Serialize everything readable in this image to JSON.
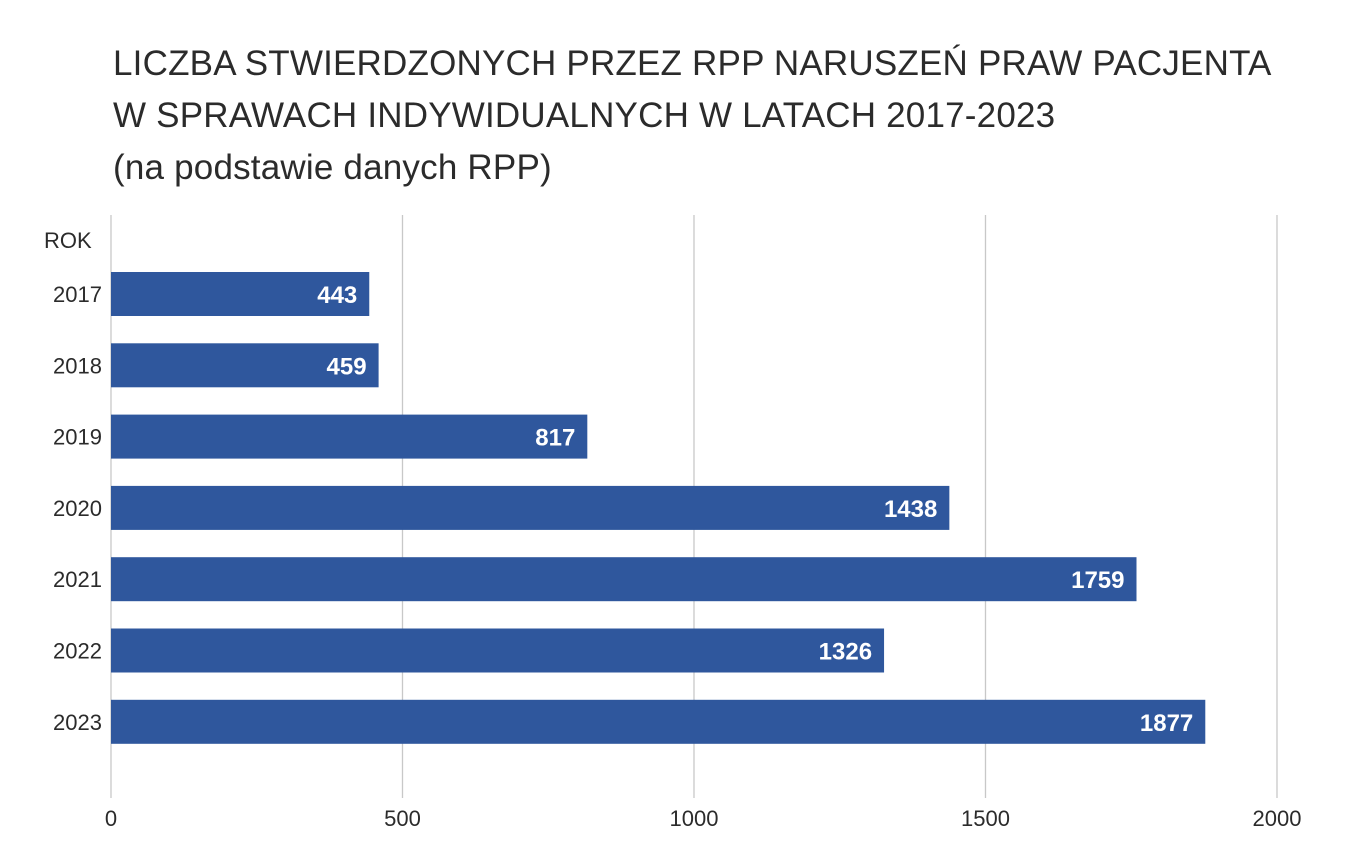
{
  "chart_data": {
    "type": "bar",
    "orientation": "horizontal",
    "title_lines": [
      "LICZBA STWIERDZONYCH PRZEZ RPP NARUSZEŃ PRAW PACJENTA",
      "W SPRAWACH INDYWIDUALNYCH W LATACH 2017-2023",
      "(na podstawie danych RPP)"
    ],
    "category_axis_label": "ROK",
    "categories": [
      "2017",
      "2018",
      "2019",
      "2020",
      "2021",
      "2022",
      "2023"
    ],
    "values": [
      443,
      459,
      817,
      1438,
      1759,
      1326,
      1877
    ],
    "value_labels": [
      "443",
      "459",
      "817",
      "1438",
      "1759",
      "1326",
      "1877"
    ],
    "xlim": [
      0,
      2000
    ],
    "xticks": [
      0,
      500,
      1000,
      1500,
      2000
    ],
    "xtick_labels": [
      "0",
      "500",
      "1000",
      "1500",
      "2000"
    ],
    "grid": "vertical",
    "bar_color": "#2f579d",
    "grid_color": "#c8c8c8"
  }
}
